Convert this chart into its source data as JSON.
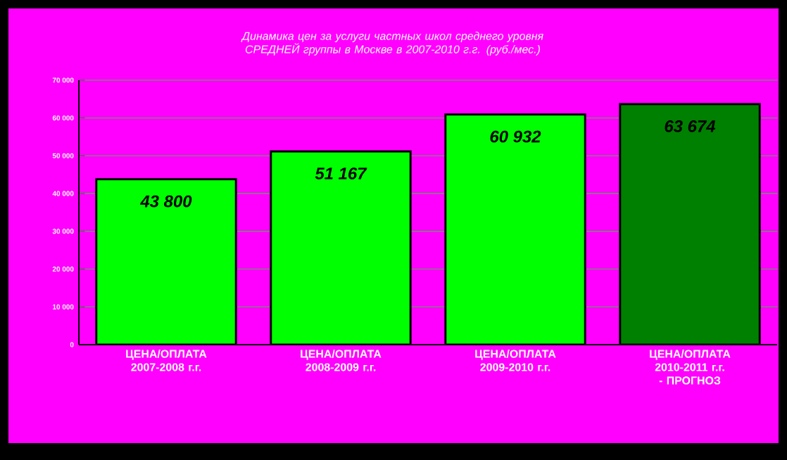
{
  "chart_data": {
    "type": "bar",
    "title": "Динамика цен за услуги частных школ среднего уровня СРЕДНЕЙ группы в Москве в 2007-2010 г.г. (руб./мес.)",
    "categories": [
      "ЦЕНА/ОПЛАТА 2007-2008 г.г.",
      "ЦЕНА/ОПЛАТА 2008-2009 г.г.",
      "ЦЕНА/ОПЛАТА 2009-2010 г.г.",
      "ЦЕНА/ОПЛАТА 2010-2011 г.г. - ПРОГНОЗ"
    ],
    "values": [
      43800,
      51167,
      60932,
      63674
    ],
    "colors": [
      "#00ff00",
      "#00ff00",
      "#00ff00",
      "#008000"
    ],
    "value_labels": [
      "43 800",
      "51 167",
      "60 932",
      "63 674"
    ],
    "ylim": [
      0,
      70000
    ],
    "yticks": [
      {
        "value": 0,
        "label": "0"
      },
      {
        "value": 10000,
        "label": "10 000"
      },
      {
        "value": 20000,
        "label": "20 000"
      },
      {
        "value": 30000,
        "label": "30 000"
      },
      {
        "value": 40000,
        "label": "40 000"
      },
      {
        "value": 50000,
        "label": "50 000"
      },
      {
        "value": 60000,
        "label": "60 000"
      },
      {
        "value": 70000,
        "label": "70 000"
      }
    ],
    "grid": "y"
  }
}
